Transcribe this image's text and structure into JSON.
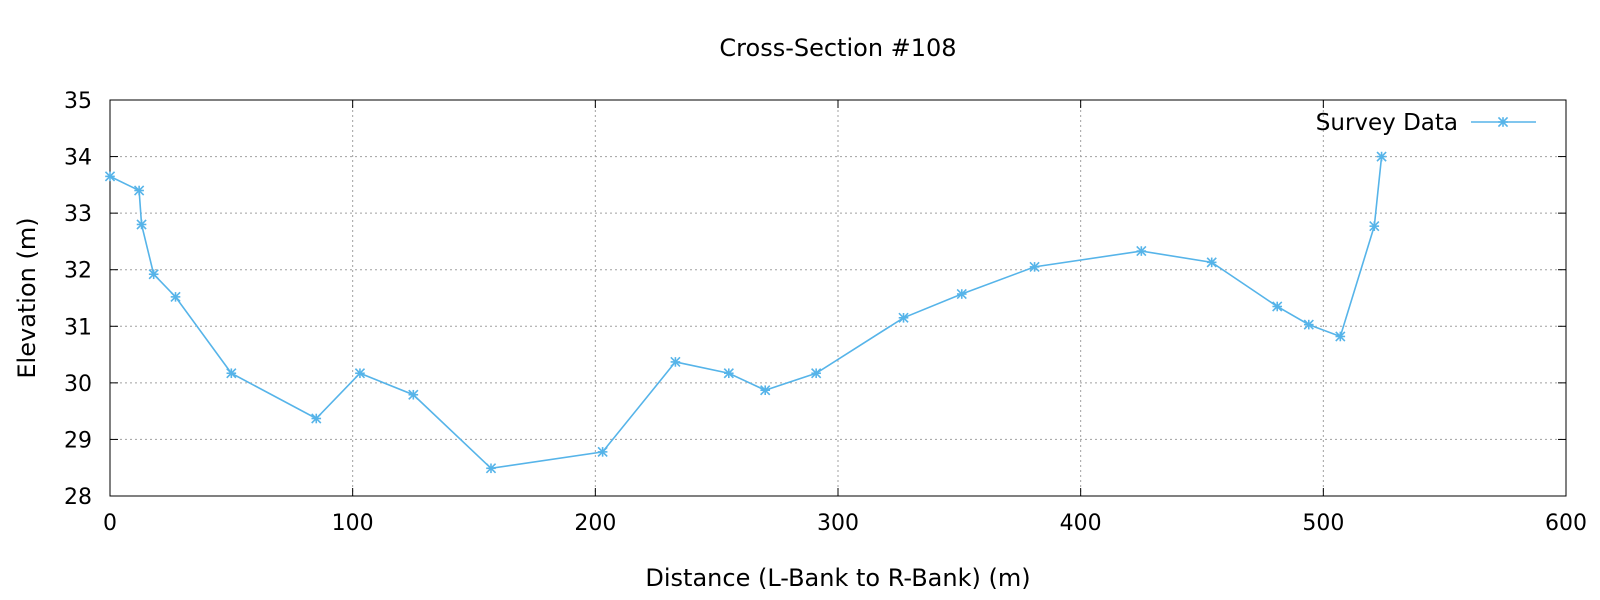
{
  "chart_data": {
    "type": "line",
    "title": "Cross-Section #108",
    "xlabel": "Distance (L-Bank to R-Bank) (m)",
    "ylabel": "Elevation (m)",
    "xlim": [
      0,
      600
    ],
    "ylim": [
      28,
      35
    ],
    "xticks": [
      0,
      100,
      200,
      300,
      400,
      500,
      600
    ],
    "yticks": [
      28,
      29,
      30,
      31,
      32,
      33,
      34,
      35
    ],
    "grid": true,
    "legend_position": "top-right",
    "series": [
      {
        "name": "Survey Data",
        "color": "#56b4e9",
        "marker": "asterisk",
        "x": [
          0,
          12,
          13,
          18,
          27,
          50,
          85,
          103,
          125,
          157,
          203,
          233,
          255,
          270,
          291,
          327,
          351,
          381,
          425,
          454,
          481,
          494,
          507,
          521,
          524
        ],
        "y": [
          33.65,
          33.4,
          32.8,
          31.92,
          31.52,
          30.17,
          29.37,
          30.17,
          29.79,
          28.49,
          28.78,
          30.37,
          30.17,
          29.87,
          30.17,
          31.15,
          31.57,
          32.05,
          32.33,
          32.13,
          31.35,
          31.03,
          30.82,
          32.77,
          34.0
        ]
      }
    ]
  }
}
